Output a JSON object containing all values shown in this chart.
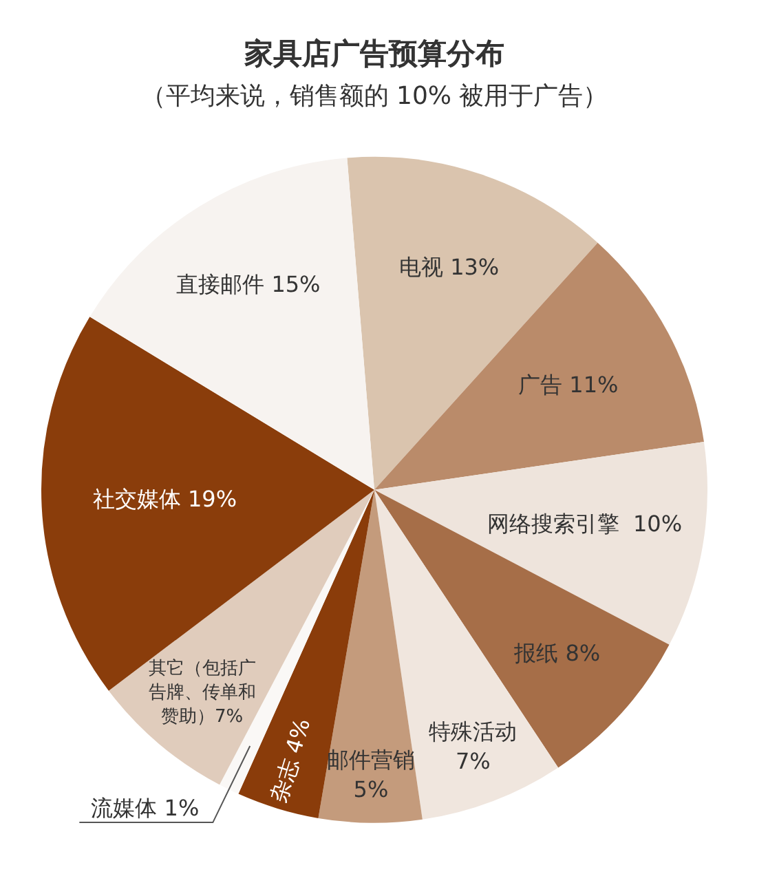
{
  "chart_data": {
    "type": "pie",
    "title": "家具店广告预算分布",
    "subtitle": "（平均来说，销售额的 10% 被用于广告）",
    "categories": [
      "电视",
      "广告",
      "网络搜索引擎",
      "报纸",
      "特殊活动",
      "邮件营销",
      "杂志",
      "流媒体",
      "其它（包括广告牌、传单和赞助）",
      "社交媒体",
      "直接邮件"
    ],
    "values": [
      13,
      11,
      10,
      8,
      7,
      5,
      4,
      1,
      7,
      19,
      15
    ],
    "value_labels": [
      "13%",
      "11%",
      "10%",
      "8%",
      "7%",
      "5%",
      "4%",
      "1%",
      "7%",
      "19%",
      "15%"
    ],
    "colors": [
      "#dac4ae",
      "#ba8b6a",
      "#eee4dc",
      "#a66e48",
      "#f0e6de",
      "#c49b7c",
      "#8a3c0a",
      "#faf8f6",
      "#e0ccbc",
      "#8a3d0b",
      "#f7f3f0"
    ]
  }
}
